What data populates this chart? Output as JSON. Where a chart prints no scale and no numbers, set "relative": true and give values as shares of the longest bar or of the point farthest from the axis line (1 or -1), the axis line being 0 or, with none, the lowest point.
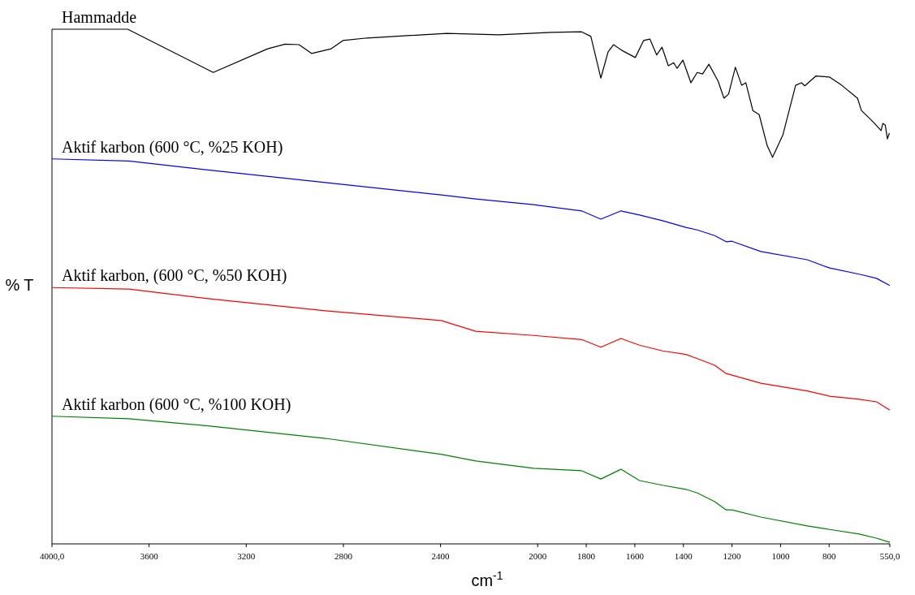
{
  "chart_data": {
    "type": "line",
    "relative": true,
    "ylabel": "% T",
    "xlabel": "cm$^{-1}$",
    "xlim": [
      4000,
      550
    ],
    "xticks": [
      {
        "value": 4000,
        "label": "4000,0"
      },
      3600,
      3200,
      2800,
      2400,
      2000,
      1800,
      1600,
      1400,
      1200,
      1000,
      800,
      {
        "value": 550,
        "label": "550,0"
      }
    ],
    "grid": false,
    "marker": "none",
    "line_style": "solid",
    "series": [
      {
        "name": "Hammadde",
        "color": "#000000",
        "x": [
          4000,
          3688,
          3336,
          3112,
          3040,
          2983,
          2931,
          2850,
          2802,
          2702,
          2374,
          2159,
          1943,
          1819,
          1781,
          1740,
          1710,
          1688,
          1650,
          1598,
          1564,
          1538,
          1510,
          1488,
          1462,
          1440,
          1426,
          1402,
          1369,
          1343,
          1321,
          1295,
          1257,
          1233,
          1214,
          1186,
          1160,
          1143,
          1114,
          1088,
          1055,
          1033,
          990,
          938,
          914,
          900,
          855,
          798,
          748,
          683,
          667,
          619,
          586,
          579,
          569,
          560,
          552
        ],
        "values": [
          1.0,
          1.0,
          0.916,
          0.962,
          0.971,
          0.97,
          0.953,
          0.962,
          0.978,
          0.983,
          0.992,
          0.989,
          0.994,
          0.995,
          0.986,
          0.905,
          0.956,
          0.97,
          0.958,
          0.945,
          0.978,
          0.981,
          0.95,
          0.965,
          0.929,
          0.935,
          0.924,
          0.94,
          0.896,
          0.916,
          0.913,
          0.932,
          0.899,
          0.866,
          0.874,
          0.926,
          0.891,
          0.896,
          0.842,
          0.834,
          0.774,
          0.751,
          0.795,
          0.891,
          0.896,
          0.89,
          0.909,
          0.907,
          0.891,
          0.866,
          0.842,
          0.82,
          0.803,
          0.817,
          0.814,
          0.787,
          0.798
        ]
      },
      {
        "name": "Aktif karbon (600 °C, %25 KOH)",
        "color": "#0000ff",
        "x": [
          4000,
          3683,
          3350,
          2874,
          2398,
          2255,
          2017,
          1819,
          1740,
          1657,
          1581,
          1486,
          1390,
          1343,
          1271,
          1224,
          1200,
          1081,
          890,
          798,
          676,
          605,
          550
        ],
        "values": [
          0.748,
          0.744,
          0.726,
          0.702,
          0.678,
          0.67,
          0.659,
          0.647,
          0.631,
          0.647,
          0.639,
          0.628,
          0.615,
          0.61,
          0.599,
          0.587,
          0.588,
          0.568,
          0.552,
          0.536,
          0.524,
          0.516,
          0.502
        ]
      },
      {
        "name": "Aktif karbon, (600 °C, %50 KOH)",
        "color": "#ff0000",
        "x": [
          4000,
          3683,
          3350,
          2874,
          2398,
          2255,
          2017,
          1819,
          1740,
          1657,
          1581,
          1486,
          1390,
          1343,
          1271,
          1224,
          1200,
          1081,
          890,
          798,
          676,
          605,
          550
        ],
        "values": [
          0.498,
          0.495,
          0.476,
          0.453,
          0.434,
          0.413,
          0.405,
          0.397,
          0.382,
          0.399,
          0.386,
          0.375,
          0.368,
          0.36,
          0.347,
          0.331,
          0.328,
          0.312,
          0.297,
          0.287,
          0.281,
          0.276,
          0.26
        ]
      },
      {
        "name": "Aktif karbon (600 °C, %100 KOH)",
        "color": "#008000",
        "x": [
          4000,
          3683,
          3350,
          2874,
          2398,
          2255,
          2017,
          1819,
          1740,
          1657,
          1581,
          1486,
          1390,
          1343,
          1271,
          1224,
          1200,
          1081,
          890,
          798,
          676,
          605,
          550
        ],
        "values": [
          0.248,
          0.243,
          0.229,
          0.205,
          0.174,
          0.161,
          0.147,
          0.142,
          0.126,
          0.145,
          0.123,
          0.114,
          0.106,
          0.099,
          0.082,
          0.066,
          0.066,
          0.052,
          0.035,
          0.028,
          0.019,
          0.011,
          0.003
        ]
      }
    ]
  }
}
